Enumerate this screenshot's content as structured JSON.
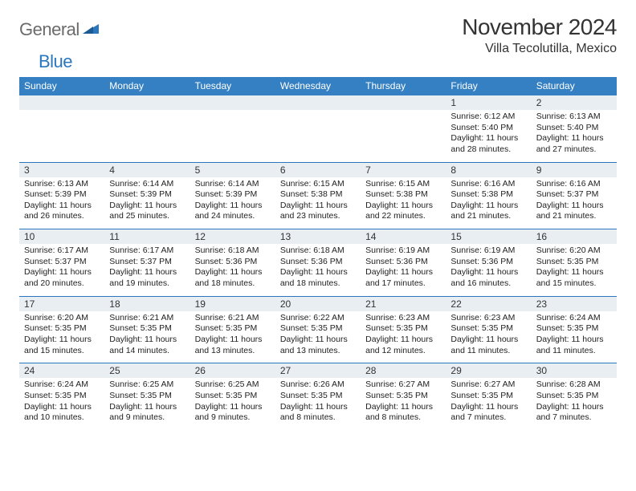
{
  "brand": {
    "part1": "General",
    "part2": "Blue"
  },
  "title": "November 2024",
  "location": "Villa Tecolutilla, Mexico",
  "colors": {
    "header_bg": "#3580c2",
    "header_text": "#ffffff",
    "dayhead_bg": "#e9eef2",
    "border": "#2a77bd",
    "text": "#222222",
    "logo_gray": "#6b6b6b",
    "logo_blue": "#2a77bd"
  },
  "weekdays": [
    "Sunday",
    "Monday",
    "Tuesday",
    "Wednesday",
    "Thursday",
    "Friday",
    "Saturday"
  ],
  "weeks": [
    [
      null,
      null,
      null,
      null,
      null,
      {
        "n": "1",
        "sr": "Sunrise: 6:12 AM",
        "ss": "Sunset: 5:40 PM",
        "d1": "Daylight: 11 hours",
        "d2": "and 28 minutes."
      },
      {
        "n": "2",
        "sr": "Sunrise: 6:13 AM",
        "ss": "Sunset: 5:40 PM",
        "d1": "Daylight: 11 hours",
        "d2": "and 27 minutes."
      }
    ],
    [
      {
        "n": "3",
        "sr": "Sunrise: 6:13 AM",
        "ss": "Sunset: 5:39 PM",
        "d1": "Daylight: 11 hours",
        "d2": "and 26 minutes."
      },
      {
        "n": "4",
        "sr": "Sunrise: 6:14 AM",
        "ss": "Sunset: 5:39 PM",
        "d1": "Daylight: 11 hours",
        "d2": "and 25 minutes."
      },
      {
        "n": "5",
        "sr": "Sunrise: 6:14 AM",
        "ss": "Sunset: 5:39 PM",
        "d1": "Daylight: 11 hours",
        "d2": "and 24 minutes."
      },
      {
        "n": "6",
        "sr": "Sunrise: 6:15 AM",
        "ss": "Sunset: 5:38 PM",
        "d1": "Daylight: 11 hours",
        "d2": "and 23 minutes."
      },
      {
        "n": "7",
        "sr": "Sunrise: 6:15 AM",
        "ss": "Sunset: 5:38 PM",
        "d1": "Daylight: 11 hours",
        "d2": "and 22 minutes."
      },
      {
        "n": "8",
        "sr": "Sunrise: 6:16 AM",
        "ss": "Sunset: 5:38 PM",
        "d1": "Daylight: 11 hours",
        "d2": "and 21 minutes."
      },
      {
        "n": "9",
        "sr": "Sunrise: 6:16 AM",
        "ss": "Sunset: 5:37 PM",
        "d1": "Daylight: 11 hours",
        "d2": "and 21 minutes."
      }
    ],
    [
      {
        "n": "10",
        "sr": "Sunrise: 6:17 AM",
        "ss": "Sunset: 5:37 PM",
        "d1": "Daylight: 11 hours",
        "d2": "and 20 minutes."
      },
      {
        "n": "11",
        "sr": "Sunrise: 6:17 AM",
        "ss": "Sunset: 5:37 PM",
        "d1": "Daylight: 11 hours",
        "d2": "and 19 minutes."
      },
      {
        "n": "12",
        "sr": "Sunrise: 6:18 AM",
        "ss": "Sunset: 5:36 PM",
        "d1": "Daylight: 11 hours",
        "d2": "and 18 minutes."
      },
      {
        "n": "13",
        "sr": "Sunrise: 6:18 AM",
        "ss": "Sunset: 5:36 PM",
        "d1": "Daylight: 11 hours",
        "d2": "and 18 minutes."
      },
      {
        "n": "14",
        "sr": "Sunrise: 6:19 AM",
        "ss": "Sunset: 5:36 PM",
        "d1": "Daylight: 11 hours",
        "d2": "and 17 minutes."
      },
      {
        "n": "15",
        "sr": "Sunrise: 6:19 AM",
        "ss": "Sunset: 5:36 PM",
        "d1": "Daylight: 11 hours",
        "d2": "and 16 minutes."
      },
      {
        "n": "16",
        "sr": "Sunrise: 6:20 AM",
        "ss": "Sunset: 5:35 PM",
        "d1": "Daylight: 11 hours",
        "d2": "and 15 minutes."
      }
    ],
    [
      {
        "n": "17",
        "sr": "Sunrise: 6:20 AM",
        "ss": "Sunset: 5:35 PM",
        "d1": "Daylight: 11 hours",
        "d2": "and 15 minutes."
      },
      {
        "n": "18",
        "sr": "Sunrise: 6:21 AM",
        "ss": "Sunset: 5:35 PM",
        "d1": "Daylight: 11 hours",
        "d2": "and 14 minutes."
      },
      {
        "n": "19",
        "sr": "Sunrise: 6:21 AM",
        "ss": "Sunset: 5:35 PM",
        "d1": "Daylight: 11 hours",
        "d2": "and 13 minutes."
      },
      {
        "n": "20",
        "sr": "Sunrise: 6:22 AM",
        "ss": "Sunset: 5:35 PM",
        "d1": "Daylight: 11 hours",
        "d2": "and 13 minutes."
      },
      {
        "n": "21",
        "sr": "Sunrise: 6:23 AM",
        "ss": "Sunset: 5:35 PM",
        "d1": "Daylight: 11 hours",
        "d2": "and 12 minutes."
      },
      {
        "n": "22",
        "sr": "Sunrise: 6:23 AM",
        "ss": "Sunset: 5:35 PM",
        "d1": "Daylight: 11 hours",
        "d2": "and 11 minutes."
      },
      {
        "n": "23",
        "sr": "Sunrise: 6:24 AM",
        "ss": "Sunset: 5:35 PM",
        "d1": "Daylight: 11 hours",
        "d2": "and 11 minutes."
      }
    ],
    [
      {
        "n": "24",
        "sr": "Sunrise: 6:24 AM",
        "ss": "Sunset: 5:35 PM",
        "d1": "Daylight: 11 hours",
        "d2": "and 10 minutes."
      },
      {
        "n": "25",
        "sr": "Sunrise: 6:25 AM",
        "ss": "Sunset: 5:35 PM",
        "d1": "Daylight: 11 hours",
        "d2": "and 9 minutes."
      },
      {
        "n": "26",
        "sr": "Sunrise: 6:25 AM",
        "ss": "Sunset: 5:35 PM",
        "d1": "Daylight: 11 hours",
        "d2": "and 9 minutes."
      },
      {
        "n": "27",
        "sr": "Sunrise: 6:26 AM",
        "ss": "Sunset: 5:35 PM",
        "d1": "Daylight: 11 hours",
        "d2": "and 8 minutes."
      },
      {
        "n": "28",
        "sr": "Sunrise: 6:27 AM",
        "ss": "Sunset: 5:35 PM",
        "d1": "Daylight: 11 hours",
        "d2": "and 8 minutes."
      },
      {
        "n": "29",
        "sr": "Sunrise: 6:27 AM",
        "ss": "Sunset: 5:35 PM",
        "d1": "Daylight: 11 hours",
        "d2": "and 7 minutes."
      },
      {
        "n": "30",
        "sr": "Sunrise: 6:28 AM",
        "ss": "Sunset: 5:35 PM",
        "d1": "Daylight: 11 hours",
        "d2": "and 7 minutes."
      }
    ]
  ]
}
